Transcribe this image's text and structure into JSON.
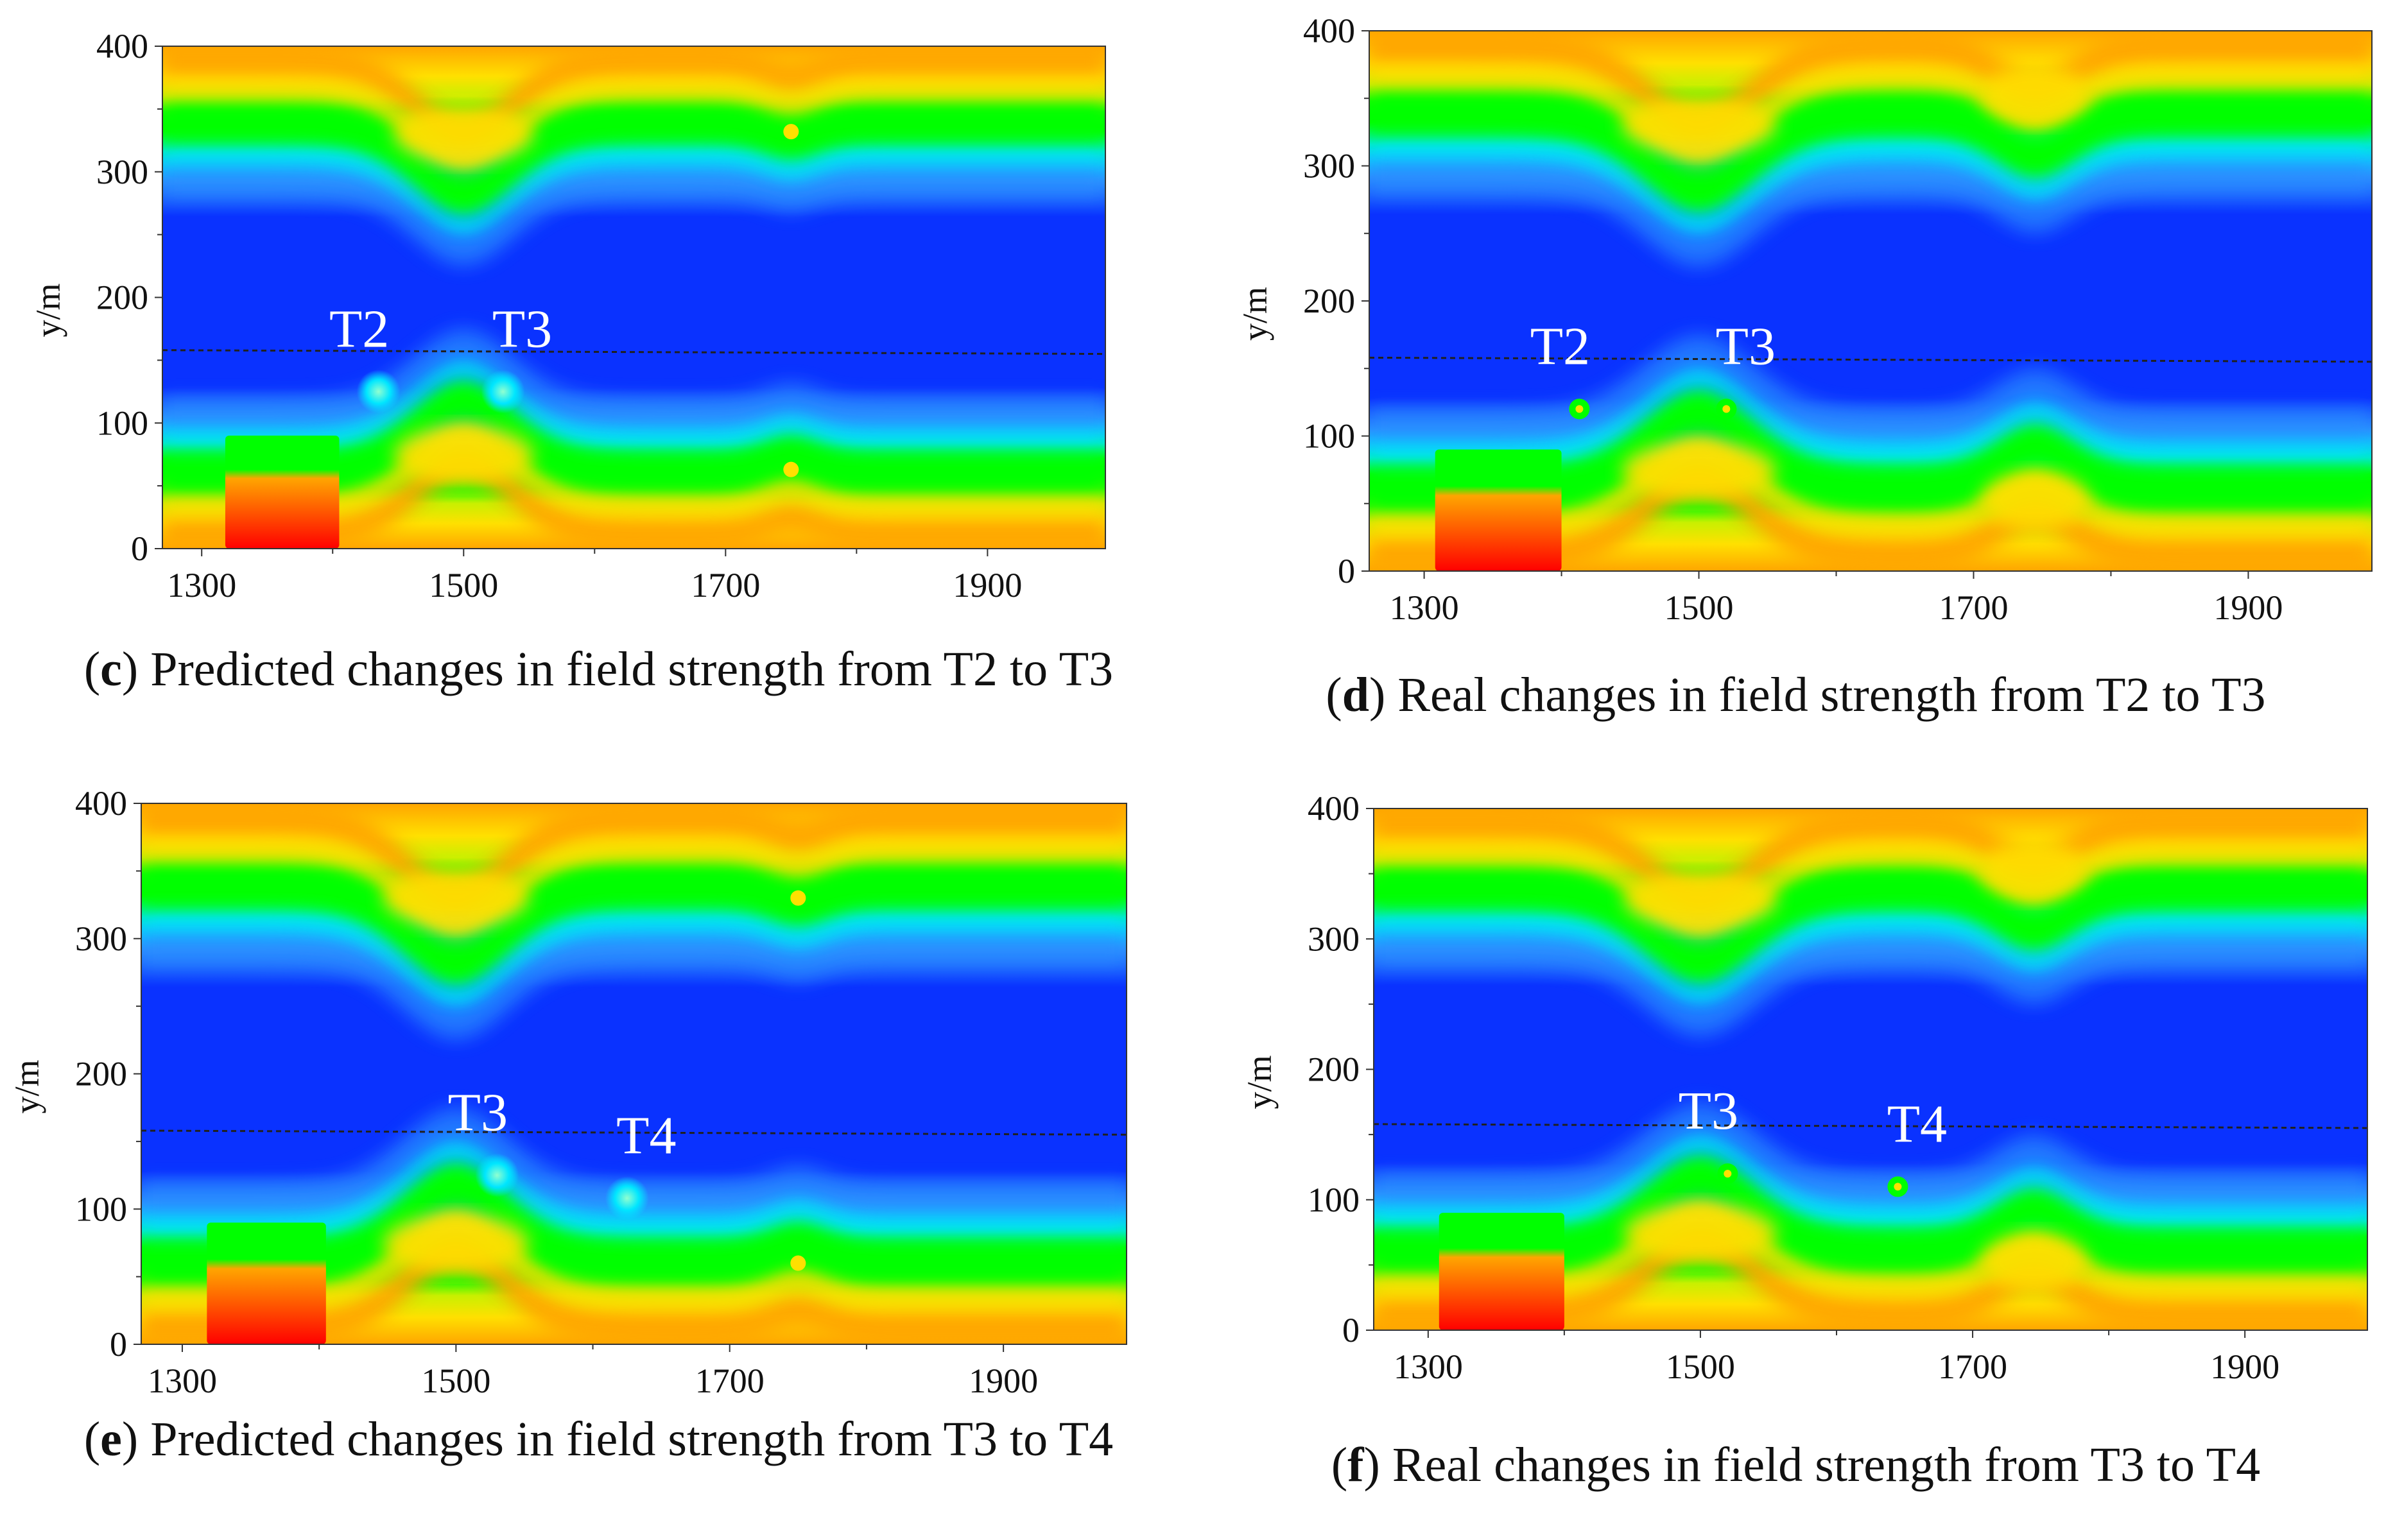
{
  "colors": {
    "blue": "#0a32ff",
    "cyan": "#00e6ff",
    "green": "#00ff00",
    "yellow": "#ffe000",
    "orange": "#ffa500",
    "red": "#ff0000",
    "dashed_line": "#202020"
  },
  "chart_data": [
    {
      "id": "c",
      "type": "heatmap",
      "title": "Predicted changes in field strength from T2 to T3",
      "caption_letter": "c",
      "caption_text": "Predicted changes in field strength from T2 to T3",
      "ylabel": "y/m",
      "xlim": [
        1270,
        1990
      ],
      "ylim": [
        0,
        400
      ],
      "xticks": [
        "1300",
        "1500",
        "1700",
        "1900"
      ],
      "yticks": [
        "0",
        "100",
        "200",
        "300",
        "400"
      ],
      "features": {
        "bumps": [
          {
            "x": 1500,
            "amp": 55,
            "sigma": 38
          },
          {
            "x": 1750,
            "amp": 12,
            "sigma": 20
          }
        ],
        "source": {
          "x0": 1318,
          "x1": 1405,
          "y1": 90
        },
        "boundary_line": {
          "y_start": 158,
          "y_end": 155
        },
        "points": [
          {
            "label": "T2",
            "x": 1435,
            "y": 125,
            "style": "predicted"
          },
          {
            "label": "T3",
            "x": 1530,
            "y": 125,
            "style": "predicted"
          }
        ],
        "field_dots": [
          {
            "x": 1750,
            "y": 63
          },
          {
            "x": 1750,
            "y": 332
          }
        ]
      }
    },
    {
      "id": "d",
      "type": "heatmap",
      "title": "Real changes in field strength from T2 to T3",
      "caption_letter": "d",
      "caption_text": "Real changes in field strength from T2 to T3",
      "ylabel": "y/m",
      "xlim": [
        1260,
        1990
      ],
      "ylim": [
        0,
        400
      ],
      "xticks": [
        "1300",
        "1500",
        "1700",
        "1900"
      ],
      "yticks": [
        "0",
        "100",
        "200",
        "300",
        "400"
      ],
      "features": {
        "bumps": [
          {
            "x": 1500,
            "amp": 55,
            "sigma": 40
          },
          {
            "x": 1745,
            "amp": 30,
            "sigma": 28
          }
        ],
        "source": {
          "x0": 1308,
          "x1": 1400,
          "y1": 90
        },
        "boundary_line": {
          "y_start": 158,
          "y_end": 155
        },
        "points": [
          {
            "label": "T2",
            "x": 1413,
            "y": 120,
            "style": "real"
          },
          {
            "label": "T3",
            "x": 1520,
            "y": 120,
            "style": "real"
          }
        ],
        "field_dots": []
      }
    },
    {
      "id": "e",
      "type": "heatmap",
      "title": "Predicted changes in field strength from T3 to T4",
      "caption_letter": "e",
      "caption_text": "Predicted changes in field strength from T3 to T4",
      "ylabel": "y/m",
      "xlim": [
        1270,
        1990
      ],
      "ylim": [
        0,
        400
      ],
      "xticks": [
        "1300",
        "1500",
        "1700",
        "1900"
      ],
      "yticks": [
        "0",
        "100",
        "200",
        "300",
        "400"
      ],
      "features": {
        "bumps": [
          {
            "x": 1500,
            "amp": 55,
            "sigma": 38
          },
          {
            "x": 1750,
            "amp": 12,
            "sigma": 20
          }
        ],
        "source": {
          "x0": 1318,
          "x1": 1405,
          "y1": 90
        },
        "boundary_line": {
          "y_start": 158,
          "y_end": 155
        },
        "points": [
          {
            "label": "T3",
            "x": 1530,
            "y": 125,
            "style": "predicted"
          },
          {
            "label": "T4",
            "x": 1625,
            "y": 108,
            "style": "predicted"
          }
        ],
        "field_dots": [
          {
            "x": 1750,
            "y": 60
          },
          {
            "x": 1750,
            "y": 330
          }
        ]
      }
    },
    {
      "id": "f",
      "type": "heatmap",
      "title": "Real changes in field strength from T3 to T4",
      "caption_letter": "f",
      "caption_text": "Real changes in field strength from T3 to T4",
      "ylabel": "y/m",
      "xlim": [
        1260,
        1990
      ],
      "ylim": [
        0,
        400
      ],
      "xticks": [
        "1300",
        "1500",
        "1700",
        "1900"
      ],
      "yticks": [
        "0",
        "100",
        "200",
        "300",
        "400"
      ],
      "features": {
        "bumps": [
          {
            "x": 1500,
            "amp": 55,
            "sigma": 40
          },
          {
            "x": 1745,
            "amp": 30,
            "sigma": 28
          }
        ],
        "source": {
          "x0": 1308,
          "x1": 1400,
          "y1": 90
        },
        "boundary_line": {
          "y_start": 158,
          "y_end": 155
        },
        "points": [
          {
            "label": "T3",
            "x": 1520,
            "y": 120,
            "style": "real"
          },
          {
            "label": "T4",
            "x": 1645,
            "y": 110,
            "style": "real"
          }
        ],
        "field_dots": []
      }
    }
  ]
}
